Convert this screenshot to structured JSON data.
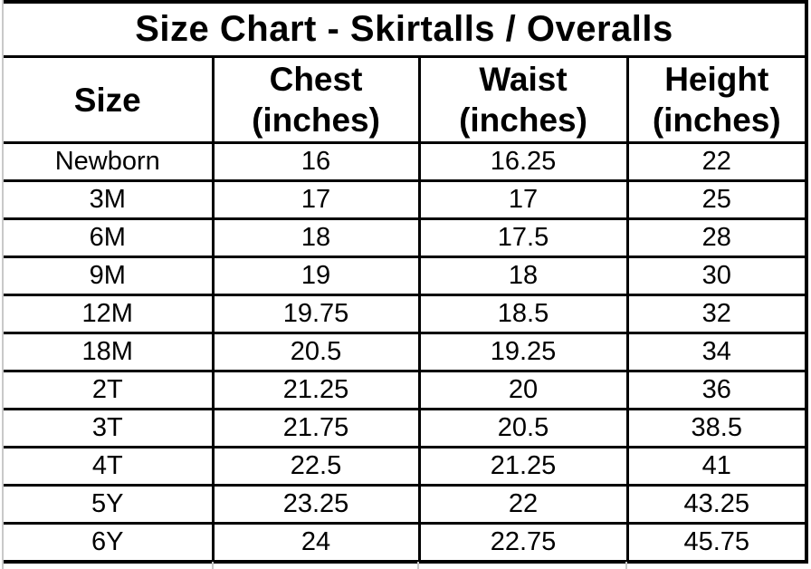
{
  "title": "Size Chart - Skirtalls / Overalls",
  "table": {
    "headers": [
      {
        "name": "Size",
        "unit": ""
      },
      {
        "name": "Chest",
        "unit": "(inches)"
      },
      {
        "name": "Waist",
        "unit": "(inches)"
      },
      {
        "name": "Height",
        "unit": "(inches)"
      }
    ],
    "rows": [
      {
        "size": "Newborn",
        "chest": "16",
        "waist": "16.25",
        "height": "22"
      },
      {
        "size": "3M",
        "chest": "17",
        "waist": "17",
        "height": "25"
      },
      {
        "size": "6M",
        "chest": "18",
        "waist": "17.5",
        "height": "28"
      },
      {
        "size": "9M",
        "chest": "19",
        "waist": "18",
        "height": "30"
      },
      {
        "size": "12M",
        "chest": "19.75",
        "waist": "18.5",
        "height": "32"
      },
      {
        "size": "18M",
        "chest": "20.5",
        "waist": "19.25",
        "height": "34"
      },
      {
        "size": "2T",
        "chest": "21.25",
        "waist": "20",
        "height": "36"
      },
      {
        "size": "3T",
        "chest": "21.75",
        "waist": "20.5",
        "height": "38.5"
      },
      {
        "size": "4T",
        "chest": "22.5",
        "waist": "21.25",
        "height": "41"
      },
      {
        "size": "5Y",
        "chest": "23.25",
        "waist": "22",
        "height": "43.25"
      },
      {
        "size": "6Y",
        "chest": "24",
        "waist": "22.75",
        "height": "45.75"
      }
    ]
  },
  "chart_data": {
    "type": "table",
    "title": "Size Chart - Skirtalls / Overalls",
    "columns": [
      "Size",
      "Chest (inches)",
      "Waist (inches)",
      "Height (inches)"
    ],
    "rows": [
      [
        "Newborn",
        16,
        16.25,
        22
      ],
      [
        "3M",
        17,
        17,
        25
      ],
      [
        "6M",
        18,
        17.5,
        28
      ],
      [
        "9M",
        19,
        18,
        30
      ],
      [
        "12M",
        19.75,
        18.5,
        32
      ],
      [
        "18M",
        20.5,
        19.25,
        34
      ],
      [
        "2T",
        21.25,
        20,
        36
      ],
      [
        "3T",
        21.75,
        20.5,
        38.5
      ],
      [
        "4T",
        22.5,
        21.25,
        41
      ],
      [
        "5Y",
        23.25,
        22,
        43.25
      ],
      [
        "6Y",
        24,
        22.75,
        45.75
      ]
    ]
  },
  "colors": {
    "border": "#000000",
    "gridline": "#c9c9c9",
    "background": "#ffffff",
    "text": "#000000"
  }
}
